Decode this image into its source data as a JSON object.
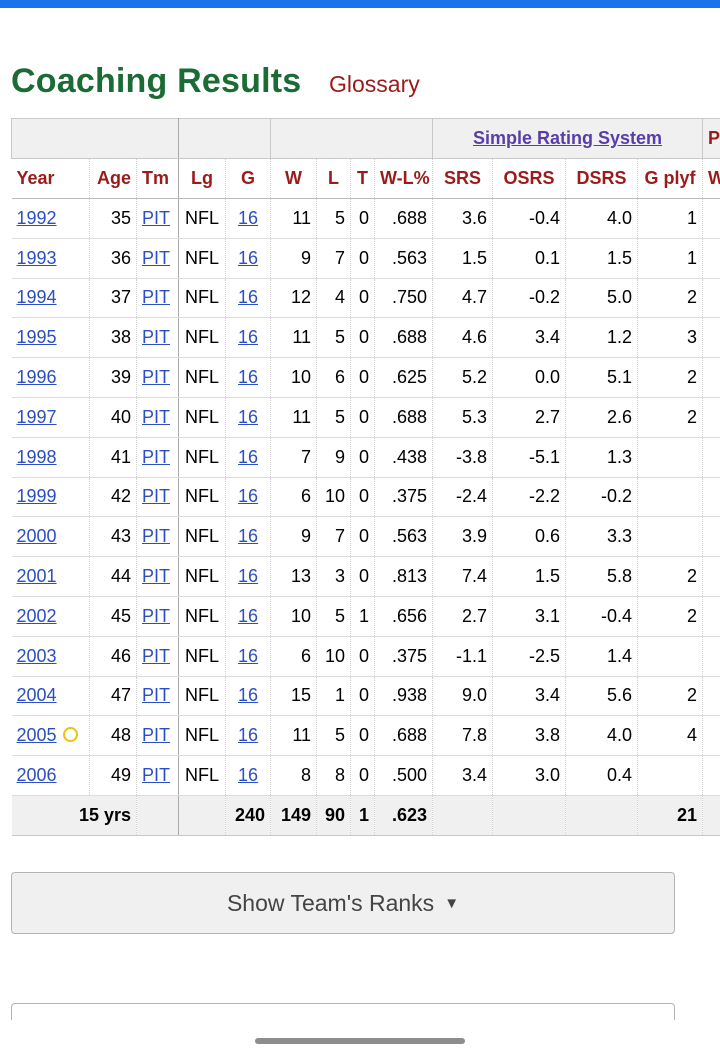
{
  "page": {
    "title": "Coaching Results",
    "glossary_label": "Glossary"
  },
  "table": {
    "over_headers": {
      "srs": "Simple Rating System",
      "playoffs": "P"
    },
    "columns": [
      "Year",
      "Age",
      "Tm",
      "Lg",
      "G",
      "W",
      "L",
      "T",
      "W-L%",
      "SRS",
      "OSRS",
      "DSRS",
      "G plyf",
      "W"
    ],
    "rows": [
      {
        "year": "1992",
        "age": "35",
        "tm": "PIT",
        "lg": "NFL",
        "g": "16",
        "w": "11",
        "l": "5",
        "t": "0",
        "wl": ".688",
        "srs": "3.6",
        "osrs": "-0.4",
        "dsrs": "4.0",
        "gplyf": "1",
        "wplyf": ""
      },
      {
        "year": "1993",
        "age": "36",
        "tm": "PIT",
        "lg": "NFL",
        "g": "16",
        "w": "9",
        "l": "7",
        "t": "0",
        "wl": ".563",
        "srs": "1.5",
        "osrs": "0.1",
        "dsrs": "1.5",
        "gplyf": "1",
        "wplyf": ""
      },
      {
        "year": "1994",
        "age": "37",
        "tm": "PIT",
        "lg": "NFL",
        "g": "16",
        "w": "12",
        "l": "4",
        "t": "0",
        "wl": ".750",
        "srs": "4.7",
        "osrs": "-0.2",
        "dsrs": "5.0",
        "gplyf": "2",
        "wplyf": ""
      },
      {
        "year": "1995",
        "age": "38",
        "tm": "PIT",
        "lg": "NFL",
        "g": "16",
        "w": "11",
        "l": "5",
        "t": "0",
        "wl": ".688",
        "srs": "4.6",
        "osrs": "3.4",
        "dsrs": "1.2",
        "gplyf": "3",
        "wplyf": ""
      },
      {
        "year": "1996",
        "age": "39",
        "tm": "PIT",
        "lg": "NFL",
        "g": "16",
        "w": "10",
        "l": "6",
        "t": "0",
        "wl": ".625",
        "srs": "5.2",
        "osrs": "0.0",
        "dsrs": "5.1",
        "gplyf": "2",
        "wplyf": ""
      },
      {
        "year": "1997",
        "age": "40",
        "tm": "PIT",
        "lg": "NFL",
        "g": "16",
        "w": "11",
        "l": "5",
        "t": "0",
        "wl": ".688",
        "srs": "5.3",
        "osrs": "2.7",
        "dsrs": "2.6",
        "gplyf": "2",
        "wplyf": ""
      },
      {
        "year": "1998",
        "age": "41",
        "tm": "PIT",
        "lg": "NFL",
        "g": "16",
        "w": "7",
        "l": "9",
        "t": "0",
        "wl": ".438",
        "srs": "-3.8",
        "osrs": "-5.1",
        "dsrs": "1.3",
        "gplyf": "",
        "wplyf": ""
      },
      {
        "year": "1999",
        "age": "42",
        "tm": "PIT",
        "lg": "NFL",
        "g": "16",
        "w": "6",
        "l": "10",
        "t": "0",
        "wl": ".375",
        "srs": "-2.4",
        "osrs": "-2.2",
        "dsrs": "-0.2",
        "gplyf": "",
        "wplyf": ""
      },
      {
        "year": "2000",
        "age": "43",
        "tm": "PIT",
        "lg": "NFL",
        "g": "16",
        "w": "9",
        "l": "7",
        "t": "0",
        "wl": ".563",
        "srs": "3.9",
        "osrs": "0.6",
        "dsrs": "3.3",
        "gplyf": "",
        "wplyf": ""
      },
      {
        "year": "2001",
        "age": "44",
        "tm": "PIT",
        "lg": "NFL",
        "g": "16",
        "w": "13",
        "l": "3",
        "t": "0",
        "wl": ".813",
        "srs": "7.4",
        "osrs": "1.5",
        "dsrs": "5.8",
        "gplyf": "2",
        "wplyf": ""
      },
      {
        "year": "2002",
        "age": "45",
        "tm": "PIT",
        "lg": "NFL",
        "g": "16",
        "w": "10",
        "l": "5",
        "t": "1",
        "wl": ".656",
        "srs": "2.7",
        "osrs": "3.1",
        "dsrs": "-0.4",
        "gplyf": "2",
        "wplyf": ""
      },
      {
        "year": "2003",
        "age": "46",
        "tm": "PIT",
        "lg": "NFL",
        "g": "16",
        "w": "6",
        "l": "10",
        "t": "0",
        "wl": ".375",
        "srs": "-1.1",
        "osrs": "-2.5",
        "dsrs": "1.4",
        "gplyf": "",
        "wplyf": ""
      },
      {
        "year": "2004",
        "age": "47",
        "tm": "PIT",
        "lg": "NFL",
        "g": "16",
        "w": "15",
        "l": "1",
        "t": "0",
        "wl": ".938",
        "srs": "9.0",
        "osrs": "3.4",
        "dsrs": "5.6",
        "gplyf": "2",
        "wplyf": ""
      },
      {
        "year": "2005",
        "age": "48",
        "tm": "PIT",
        "lg": "NFL",
        "g": "16",
        "w": "11",
        "l": "5",
        "t": "0",
        "wl": ".688",
        "srs": "7.8",
        "osrs": "3.8",
        "dsrs": "4.0",
        "gplyf": "4",
        "wplyf": "",
        "champion_marker": "ring-icon"
      },
      {
        "year": "2006",
        "age": "49",
        "tm": "PIT",
        "lg": "NFL",
        "g": "16",
        "w": "8",
        "l": "8",
        "t": "0",
        "wl": ".500",
        "srs": "3.4",
        "osrs": "3.0",
        "dsrs": "0.4",
        "gplyf": "",
        "wplyf": ""
      }
    ],
    "totals": {
      "label": "15 yrs",
      "g": "240",
      "w": "149",
      "l": "90",
      "t": "1",
      "wl": ".623",
      "gplyf": "21"
    }
  },
  "buttons": {
    "show_ranks": "Show Team's Ranks",
    "show_ranks_caret": "▼"
  },
  "colors": {
    "title_green": "#1b6b35",
    "header_red": "#9b1b1b",
    "link_blue": "#2b4ec2",
    "srs_purple": "#5a3da8",
    "top_bar_blue": "#1a73e8",
    "champion_ring": "#e8c31a"
  }
}
